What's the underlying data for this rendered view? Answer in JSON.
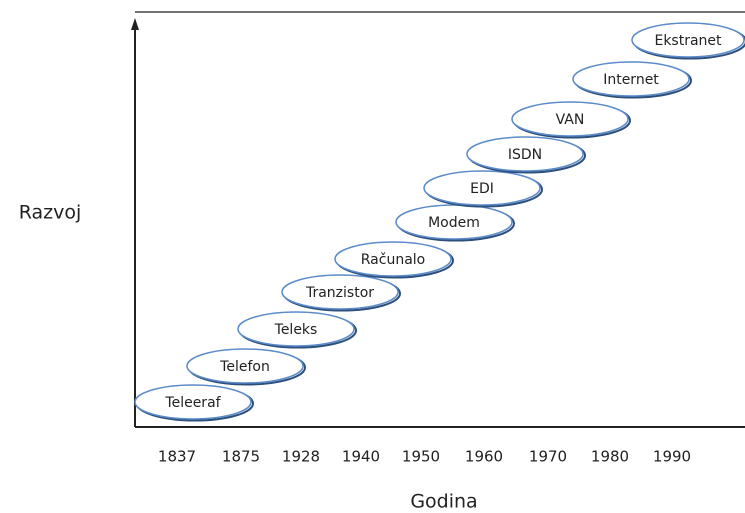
{
  "axis_labels": {
    "y": "Razvoj",
    "x": "Godina"
  },
  "years": [
    "1837",
    "1875",
    "1928",
    "1940",
    "1950",
    "1960",
    "1970",
    "1980",
    "1990"
  ],
  "nodes": [
    {
      "label": "Teleeraf"
    },
    {
      "label": "Telefon"
    },
    {
      "label": "Teleks"
    },
    {
      "label": "Tranzistor"
    },
    {
      "label": "Računalo"
    },
    {
      "label": "Modem"
    },
    {
      "label": "EDI"
    },
    {
      "label": "ISDN"
    },
    {
      "label": "VAN"
    },
    {
      "label": "Internet"
    },
    {
      "label": "Ekstranet"
    }
  ]
}
